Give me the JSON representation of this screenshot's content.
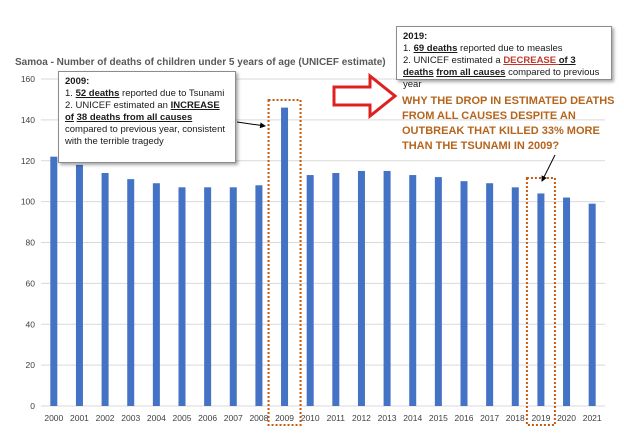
{
  "chart_data": {
    "type": "bar",
    "title": "Samoa - Number of deaths of children under 5 years of age (UNICEF estimate)",
    "categories": [
      "2000",
      "2001",
      "2002",
      "2003",
      "2004",
      "2005",
      "2006",
      "2007",
      "2008",
      "2009",
      "2010",
      "2011",
      "2012",
      "2013",
      "2014",
      "2015",
      "2016",
      "2017",
      "2018",
      "2019",
      "2020",
      "2021"
    ],
    "values": [
      122,
      118,
      114,
      111,
      109,
      107,
      107,
      107,
      108,
      146,
      113,
      114,
      115,
      115,
      113,
      112,
      110,
      109,
      107,
      104,
      102,
      99
    ],
    "ylim": [
      0,
      160
    ],
    "yticks": [
      0,
      20,
      40,
      60,
      80,
      100,
      120,
      140,
      160
    ],
    "grid": true,
    "bar_color": "#4472c4",
    "highlight_color": "#c55a11"
  },
  "annotation_2009": {
    "heading": "2009:",
    "line1_prefix": "1. ",
    "line1_bold": "52 deaths",
    "line1_rest": "  reported due to Tsunami",
    "line2_prefix": "2. UNICEF estimated an ",
    "line2_bold1": "INCREASE of",
    "line2_bold2": "38 deaths from all causes",
    "line2_rest": "  compared to previous year, consistent with the terrible tragedy"
  },
  "annotation_2019": {
    "heading": "2019:",
    "line1_prefix": "1. ",
    "line1_bold": "69 deaths",
    "line1_rest": " reported due to measles",
    "line2_prefix": "2. UNICEF estimated a ",
    "line2_bold1": "DECREASE ",
    "line2_bold2": "of 3 deaths",
    "line2_bold3": "from all causes",
    "line2_rest": "  compared to previous year"
  },
  "callout": {
    "line1": "WHY THE DROP IN ESTIMATED DEATHS",
    "line2": "FROM ALL CAUSES DESPITE AN",
    "line3": "OUTBREAK THAT KILLED 33% MORE",
    "line4": "THAN THE TSUNAMI IN 2009?"
  },
  "colors": {
    "arrow_red": "#e02020",
    "callout_text": "#b5651d",
    "gridline": "#d9d9d9"
  }
}
